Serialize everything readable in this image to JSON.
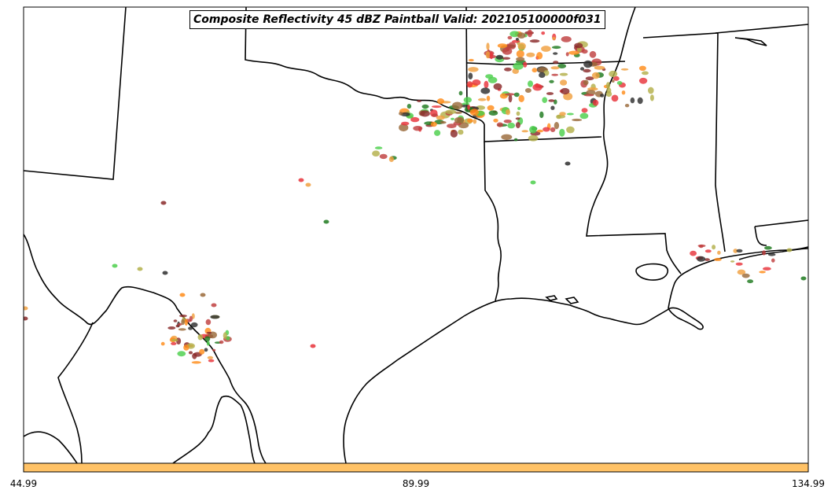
{
  "title": "Composite Reflectivity 45 dBZ Paintball Valid: 202105100000f031",
  "colorbar": {
    "color": "#ffc266",
    "ticks": [
      "44.99",
      "89.99",
      "134.99"
    ]
  },
  "colors": {
    "ensemble_members": [
      "#e8333a",
      "#f0a040",
      "#8a2a2a",
      "#1f7a1f",
      "#b3b04a",
      "#4ccf4c",
      "#2e2e2e",
      "#ff8c1a",
      "#9a6a3a",
      "#c04040"
    ]
  }
}
